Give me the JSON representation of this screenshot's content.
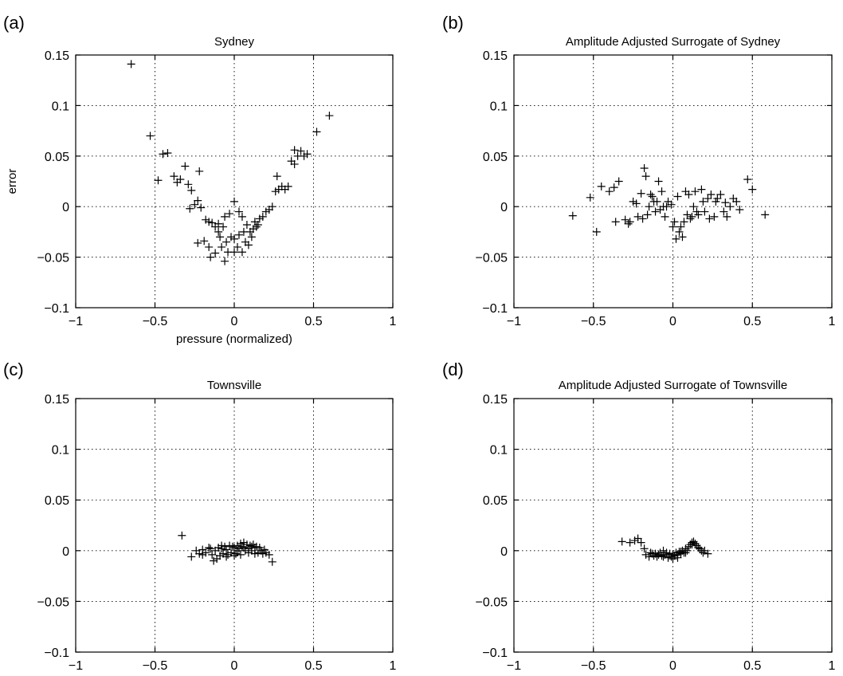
{
  "chart_data": [
    {
      "type": "scatter",
      "panel_label": "(a)",
      "title": "Sydney",
      "xlabel": "pressure (normalized)",
      "ylabel": "error",
      "xlim": [
        -1,
        1
      ],
      "ylim": [
        -0.1,
        0.15
      ],
      "xticks": [
        "−1",
        "−0.5",
        "0",
        "0.5",
        "1"
      ],
      "yticks": [
        "−0.1",
        "−0.05",
        "0",
        "0.05",
        "0.1",
        "0.15"
      ],
      "grid": true,
      "marker": "+",
      "points": [
        [
          -0.65,
          0.141
        ],
        [
          -0.53,
          0.07
        ],
        [
          -0.48,
          0.026
        ],
        [
          -0.45,
          0.052
        ],
        [
          -0.42,
          0.053
        ],
        [
          -0.38,
          0.03
        ],
        [
          -0.36,
          0.024
        ],
        [
          -0.34,
          0.027
        ],
        [
          -0.31,
          0.04
        ],
        [
          -0.29,
          0.022
        ],
        [
          -0.27,
          0.016
        ],
        [
          -0.22,
          0.035
        ],
        [
          -0.28,
          -0.002
        ],
        [
          -0.25,
          0.002
        ],
        [
          -0.23,
          0.006
        ],
        [
          -0.21,
          -0.001
        ],
        [
          -0.18,
          -0.013
        ],
        [
          -0.16,
          -0.015
        ],
        [
          -0.14,
          -0.016
        ],
        [
          -0.12,
          -0.02
        ],
        [
          -0.1,
          -0.017
        ],
        [
          -0.06,
          -0.01
        ],
        [
          -0.03,
          -0.007
        ],
        [
          0.0,
          0.005
        ],
        [
          0.03,
          -0.005
        ],
        [
          0.05,
          -0.01
        ],
        [
          0.08,
          -0.018
        ],
        [
          0.1,
          -0.025
        ],
        [
          0.12,
          -0.022
        ],
        [
          0.14,
          -0.02
        ],
        [
          0.16,
          -0.012
        ],
        [
          0.18,
          -0.01
        ],
        [
          0.2,
          -0.005
        ],
        [
          0.22,
          -0.003
        ],
        [
          0.24,
          0.0
        ],
        [
          0.26,
          0.015
        ],
        [
          0.28,
          0.017
        ],
        [
          0.3,
          0.02
        ],
        [
          0.32,
          0.017
        ],
        [
          0.34,
          0.02
        ],
        [
          0.27,
          0.03
        ],
        [
          0.36,
          0.045
        ],
        [
          0.38,
          0.042
        ],
        [
          0.4,
          0.05
        ],
        [
          0.42,
          0.055
        ],
        [
          0.44,
          0.05
        ],
        [
          0.46,
          0.052
        ],
        [
          0.38,
          0.056
        ],
        [
          0.52,
          0.074
        ],
        [
          0.6,
          0.09
        ],
        [
          -0.23,
          -0.036
        ],
        [
          -0.19,
          -0.034
        ],
        [
          -0.15,
          -0.05
        ],
        [
          -0.12,
          -0.046
        ],
        [
          -0.08,
          -0.04
        ],
        [
          -0.06,
          -0.054
        ],
        [
          -0.04,
          -0.045
        ],
        [
          -0.02,
          -0.03
        ],
        [
          0.0,
          -0.032
        ],
        [
          0.02,
          -0.04
        ],
        [
          0.05,
          -0.045
        ],
        [
          0.07,
          -0.035
        ],
        [
          0.09,
          -0.038
        ],
        [
          0.11,
          -0.03
        ],
        [
          0.13,
          -0.015
        ],
        [
          0.15,
          -0.018
        ],
        [
          -0.09,
          -0.03
        ],
        [
          -0.05,
          -0.035
        ],
        [
          0.03,
          -0.028
        ],
        [
          -0.16,
          -0.04
        ],
        [
          -0.1,
          -0.025
        ],
        [
          -0.07,
          -0.02
        ],
        [
          0.06,
          -0.025
        ],
        [
          0.0,
          -0.045
        ]
      ]
    },
    {
      "type": "scatter",
      "panel_label": "(b)",
      "title": "Amplitude Adjusted Surrogate of Sydney",
      "xlabel": "",
      "ylabel": "",
      "xlim": [
        -1,
        1
      ],
      "ylim": [
        -0.1,
        0.15
      ],
      "xticks": [
        "−1",
        "−0.5",
        "0",
        "0.5",
        "1"
      ],
      "yticks": [
        "−0.1",
        "−0.05",
        "0",
        "0.05",
        "0.1",
        "0.15"
      ],
      "grid": true,
      "marker": "+",
      "points": [
        [
          -0.63,
          -0.009
        ],
        [
          -0.52,
          0.009
        ],
        [
          -0.48,
          -0.025
        ],
        [
          -0.45,
          0.02
        ],
        [
          -0.4,
          0.015
        ],
        [
          -0.37,
          0.019
        ],
        [
          -0.34,
          0.025
        ],
        [
          -0.36,
          -0.015
        ],
        [
          -0.3,
          -0.013
        ],
        [
          -0.28,
          -0.017
        ],
        [
          -0.25,
          0.005
        ],
        [
          -0.23,
          0.003
        ],
        [
          -0.2,
          0.013
        ],
        [
          -0.18,
          0.038
        ],
        [
          -0.17,
          0.03
        ],
        [
          -0.15,
          0.0
        ],
        [
          -0.13,
          0.01
        ],
        [
          -0.11,
          -0.005
        ],
        [
          -0.09,
          0.025
        ],
        [
          -0.07,
          0.015
        ],
        [
          -0.05,
          -0.01
        ],
        [
          -0.03,
          0.005
        ],
        [
          -0.01,
          0.002
        ],
        [
          0.0,
          -0.02
        ],
        [
          0.02,
          -0.032
        ],
        [
          0.04,
          -0.025
        ],
        [
          0.06,
          -0.03
        ],
        [
          0.08,
          0.015
        ],
        [
          0.1,
          0.012
        ],
        [
          0.12,
          -0.01
        ],
        [
          0.14,
          0.015
        ],
        [
          0.16,
          -0.008
        ],
        [
          0.18,
          0.017
        ],
        [
          0.2,
          -0.005
        ],
        [
          0.22,
          0.008
        ],
        [
          0.24,
          0.012
        ],
        [
          0.26,
          -0.01
        ],
        [
          0.28,
          0.008
        ],
        [
          0.3,
          0.012
        ],
        [
          0.32,
          -0.005
        ],
        [
          0.34,
          -0.01
        ],
        [
          0.36,
          0.0
        ],
        [
          0.38,
          0.008
        ],
        [
          0.4,
          0.005
        ],
        [
          0.42,
          -0.003
        ],
        [
          0.47,
          0.027
        ],
        [
          0.5,
          0.017
        ],
        [
          0.58,
          -0.008
        ],
        [
          -0.27,
          -0.015
        ],
        [
          -0.22,
          -0.01
        ],
        [
          -0.19,
          -0.012
        ],
        [
          -0.16,
          -0.008
        ],
        [
          -0.12,
          0.005
        ],
        [
          -0.08,
          -0.003
        ],
        [
          -0.04,
          0.0
        ],
        [
          0.03,
          0.01
        ],
        [
          0.07,
          -0.015
        ],
        [
          0.11,
          -0.012
        ],
        [
          0.15,
          -0.005
        ],
        [
          0.19,
          0.005
        ],
        [
          0.23,
          -0.012
        ],
        [
          0.27,
          0.005
        ],
        [
          -0.06,
          0.0
        ],
        [
          0.05,
          -0.02
        ],
        [
          0.09,
          -0.008
        ],
        [
          -0.14,
          0.012
        ],
        [
          -0.1,
          0.005
        ],
        [
          0.01,
          -0.015
        ],
        [
          0.13,
          0.0
        ],
        [
          0.33,
          0.004
        ]
      ]
    },
    {
      "type": "scatter",
      "panel_label": "(c)",
      "title": "Townsville",
      "xlabel": "",
      "ylabel": "",
      "xlim": [
        -1,
        1
      ],
      "ylim": [
        -0.1,
        0.15
      ],
      "xticks": [
        "−1",
        "−0.5",
        "0",
        "0.5",
        "1"
      ],
      "yticks": [
        "−0.1",
        "−0.05",
        "0",
        "0.05",
        "0.1",
        "0.15"
      ],
      "grid": true,
      "marker": "+",
      "points": [
        [
          -0.33,
          0.015
        ],
        [
          -0.27,
          -0.006
        ],
        [
          -0.24,
          0.0
        ],
        [
          -0.22,
          -0.003
        ],
        [
          -0.2,
          0.001
        ],
        [
          -0.18,
          -0.002
        ],
        [
          -0.16,
          0.003
        ],
        [
          -0.14,
          -0.004
        ],
        [
          -0.13,
          -0.01
        ],
        [
          -0.12,
          0.0
        ],
        [
          -0.1,
          0.003
        ],
        [
          -0.09,
          -0.005
        ],
        [
          -0.08,
          0.002
        ],
        [
          -0.07,
          -0.003
        ],
        [
          -0.06,
          0.004
        ],
        [
          -0.05,
          0.001
        ],
        [
          -0.04,
          -0.004
        ],
        [
          -0.03,
          0.005
        ],
        [
          -0.02,
          -0.002
        ],
        [
          -0.01,
          0.004
        ],
        [
          0.0,
          0.003
        ],
        [
          0.01,
          -0.003
        ],
        [
          0.02,
          0.005
        ],
        [
          0.03,
          0.002
        ],
        [
          0.04,
          0.007
        ],
        [
          0.05,
          0.004
        ],
        [
          0.06,
          0.008
        ],
        [
          0.07,
          0.0
        ],
        [
          0.08,
          0.006
        ],
        [
          0.09,
          0.002
        ],
        [
          0.1,
          0.005
        ],
        [
          0.11,
          0.0
        ],
        [
          0.12,
          0.006
        ],
        [
          0.13,
          0.003
        ],
        [
          0.14,
          0.004
        ],
        [
          0.15,
          -0.002
        ],
        [
          0.16,
          0.003
        ],
        [
          0.17,
          0.0
        ],
        [
          0.18,
          -0.003
        ],
        [
          0.2,
          -0.002
        ],
        [
          0.22,
          -0.004
        ],
        [
          0.24,
          -0.011
        ],
        [
          -0.11,
          -0.008
        ],
        [
          -0.05,
          -0.006
        ],
        [
          0.0,
          -0.005
        ],
        [
          0.04,
          -0.004
        ],
        [
          0.09,
          -0.002
        ],
        [
          0.13,
          -0.003
        ],
        [
          -0.15,
          0.002
        ],
        [
          0.06,
          0.003
        ],
        [
          0.02,
          0.0
        ],
        [
          -0.08,
          0.005
        ],
        [
          0.11,
          0.004
        ],
        [
          0.19,
          0.001
        ],
        [
          -0.2,
          -0.004
        ]
      ]
    },
    {
      "type": "scatter",
      "panel_label": "(d)",
      "title": "Amplitude Adjusted Surrogate of Townsville",
      "xlabel": "",
      "ylabel": "",
      "xlim": [
        -1,
        1
      ],
      "ylim": [
        -0.1,
        0.15
      ],
      "xticks": [
        "−1",
        "−0.5",
        "0",
        "0.5",
        "1"
      ],
      "yticks": [
        "−0.1",
        "−0.05",
        "0",
        "0.05",
        "0.1",
        "0.15"
      ],
      "grid": true,
      "marker": "+",
      "points": [
        [
          -0.32,
          0.009
        ],
        [
          -0.27,
          0.008
        ],
        [
          -0.24,
          0.01
        ],
        [
          -0.22,
          0.012
        ],
        [
          -0.2,
          0.008
        ],
        [
          -0.18,
          0.002
        ],
        [
          -0.17,
          -0.004
        ],
        [
          -0.15,
          -0.006
        ],
        [
          -0.14,
          -0.002
        ],
        [
          -0.12,
          -0.005
        ],
        [
          -0.11,
          -0.003
        ],
        [
          -0.1,
          -0.006
        ],
        [
          -0.08,
          -0.002
        ],
        [
          -0.07,
          -0.005
        ],
        [
          -0.06,
          0.0
        ],
        [
          -0.05,
          -0.004
        ],
        [
          -0.04,
          -0.002
        ],
        [
          -0.03,
          -0.007
        ],
        [
          -0.02,
          -0.003
        ],
        [
          -0.01,
          -0.006
        ],
        [
          0.0,
          -0.008
        ],
        [
          0.01,
          -0.005
        ],
        [
          0.02,
          -0.002
        ],
        [
          0.03,
          -0.004
        ],
        [
          0.04,
          -0.001
        ],
        [
          0.05,
          -0.003
        ],
        [
          0.06,
          0.0
        ],
        [
          0.07,
          -0.002
        ],
        [
          0.08,
          0.002
        ],
        [
          0.09,
          0.0
        ],
        [
          0.1,
          0.004
        ],
        [
          0.11,
          0.006
        ],
        [
          0.12,
          0.008
        ],
        [
          0.13,
          0.009
        ],
        [
          0.14,
          0.007
        ],
        [
          0.15,
          0.005
        ],
        [
          0.16,
          0.003
        ],
        [
          0.17,
          0.002
        ],
        [
          0.18,
          0.0
        ],
        [
          0.19,
          -0.002
        ],
        [
          0.2,
          0.0
        ],
        [
          0.22,
          -0.003
        ],
        [
          -0.09,
          -0.004
        ],
        [
          -0.13,
          -0.003
        ],
        [
          0.0,
          -0.004
        ],
        [
          0.05,
          -0.001
        ],
        [
          0.12,
          0.006
        ],
        [
          -0.06,
          -0.006
        ],
        [
          0.03,
          -0.007
        ],
        [
          0.08,
          -0.002
        ]
      ]
    }
  ]
}
